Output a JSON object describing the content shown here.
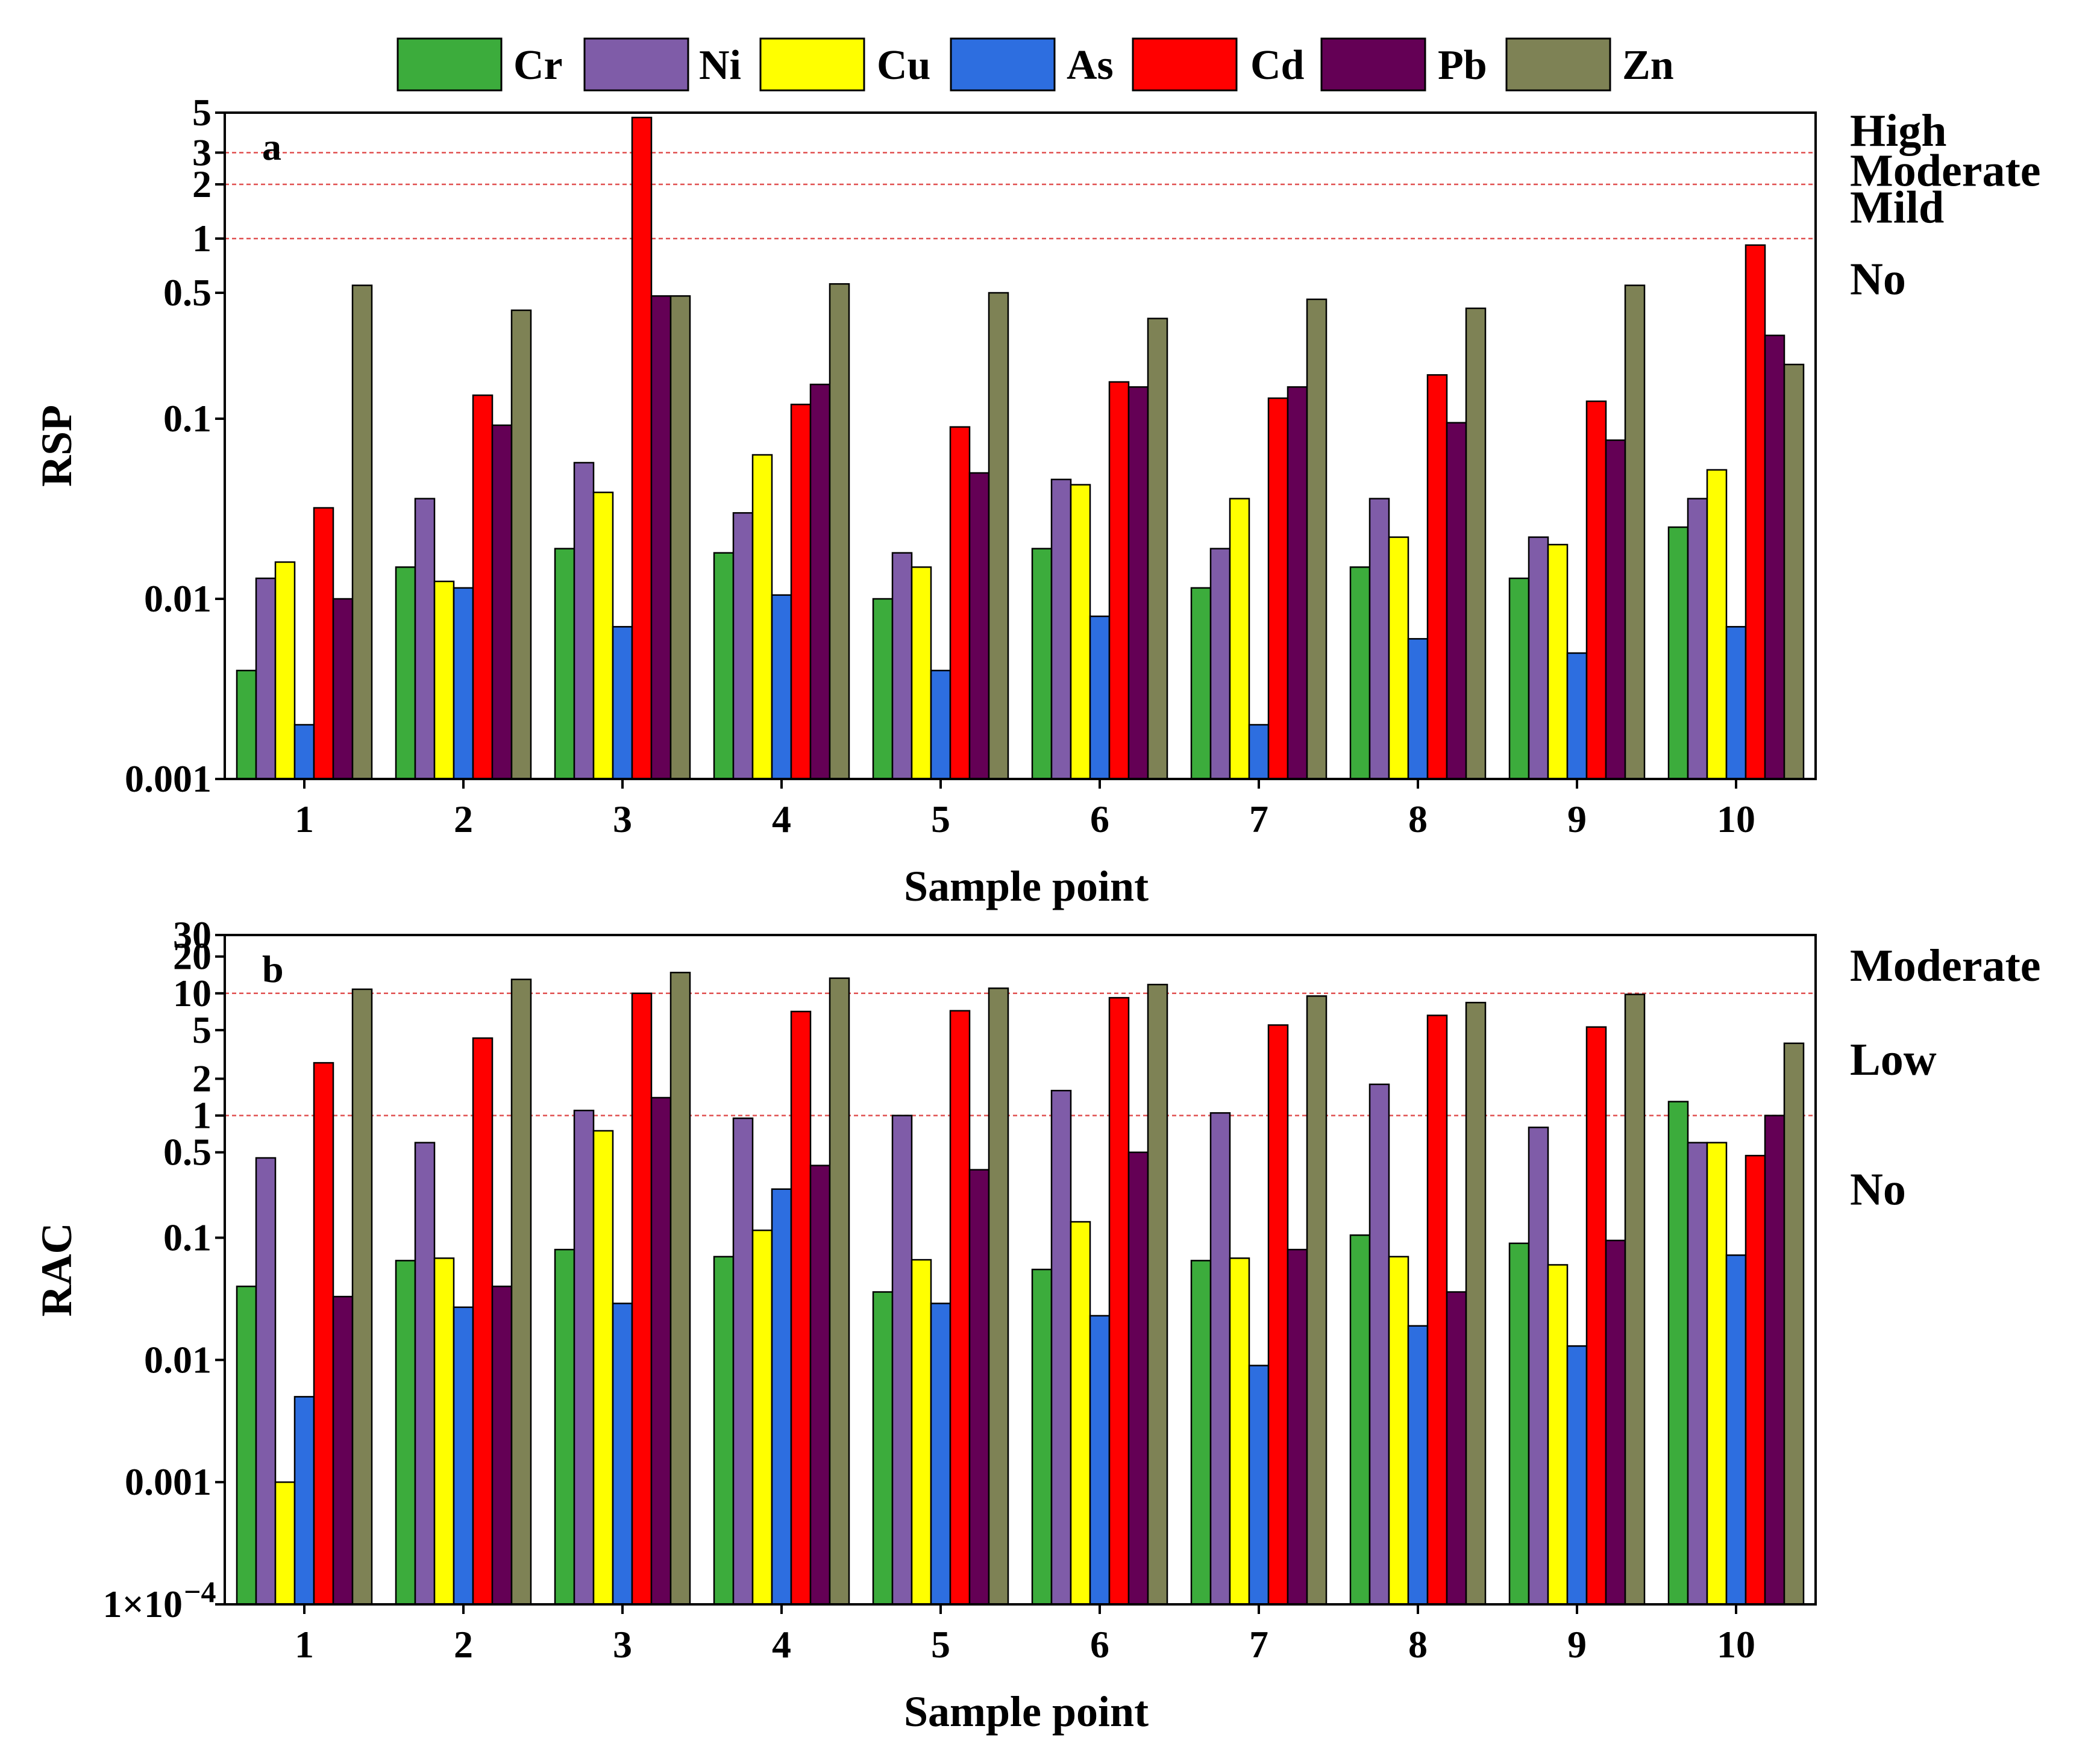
{
  "chart_data": [
    {
      "panel": "a",
      "type": "bar",
      "scale": "log",
      "title": "",
      "xlabel": "Sample point",
      "ylabel": "RSP",
      "ylim": [
        0.001,
        5
      ],
      "yticks": [
        0.001,
        0.01,
        0.1,
        0.5,
        1,
        2,
        3,
        5
      ],
      "ytick_labels": [
        "0.001",
        "0.01",
        "0.1",
        "0.5",
        "1",
        "2",
        "3",
        "5"
      ],
      "categories": [
        "1",
        "2",
        "3",
        "4",
        "5",
        "6",
        "7",
        "8",
        "9",
        "10"
      ],
      "thresholds": [
        1,
        2,
        3
      ],
      "risk_levels": [
        {
          "label": "High",
          "y": 4
        },
        {
          "label": "Moderate",
          "y": 2.4
        },
        {
          "label": "Mild",
          "y": 1.5
        },
        {
          "label": "No",
          "y": 0.6
        }
      ],
      "series": [
        {
          "name": "Cr",
          "values": [
            0.004,
            0.015,
            0.019,
            0.018,
            0.01,
            0.019,
            0.0115,
            0.015,
            0.013,
            0.025
          ]
        },
        {
          "name": "Ni",
          "values": [
            0.013,
            0.036,
            0.057,
            0.03,
            0.018,
            0.046,
            0.019,
            0.036,
            0.022,
            0.036
          ]
        },
        {
          "name": "Cu",
          "values": [
            0.016,
            0.0125,
            0.039,
            0.063,
            0.015,
            0.043,
            0.036,
            0.022,
            0.02,
            0.052
          ]
        },
        {
          "name": "As",
          "values": [
            0.002,
            0.0115,
            0.007,
            0.0105,
            0.004,
            0.008,
            0.002,
            0.006,
            0.005,
            0.007
          ]
        },
        {
          "name": "Cd",
          "values": [
            0.032,
            0.135,
            4.7,
            0.12,
            0.09,
            0.16,
            0.13,
            0.175,
            0.125,
            0.92
          ]
        },
        {
          "name": "Pb",
          "values": [
            0.01,
            0.092,
            0.48,
            0.155,
            0.05,
            0.15,
            0.15,
            0.095,
            0.076,
            0.29
          ]
        },
        {
          "name": "Zn",
          "values": [
            0.55,
            0.4,
            0.48,
            0.56,
            0.5,
            0.36,
            0.46,
            0.41,
            0.55,
            0.2
          ]
        }
      ]
    },
    {
      "panel": "b",
      "type": "bar",
      "scale": "log",
      "title": "",
      "xlabel": "Sample point",
      "ylabel": "RAC",
      "ylim": [
        0.0001,
        30
      ],
      "yticks": [
        0.0001,
        0.001,
        0.01,
        0.1,
        0.5,
        1,
        2,
        5,
        10,
        20,
        30
      ],
      "ytick_labels": [
        "1×10",
        "0.001",
        "0.01",
        "0.1",
        "0.5",
        "1",
        "2",
        "5",
        "10",
        "20",
        "30"
      ],
      "ytick_exponent": "-4",
      "categories": [
        "1",
        "2",
        "3",
        "4",
        "5",
        "6",
        "7",
        "8",
        "9",
        "10"
      ],
      "thresholds": [
        1,
        10
      ],
      "risk_levels": [
        {
          "label": "Moderate",
          "y": 17
        },
        {
          "label": "Low",
          "y": 2.9
        },
        {
          "label": "No",
          "y": 0.25
        }
      ],
      "series": [
        {
          "name": "Cr",
          "values": [
            0.04,
            0.065,
            0.08,
            0.07,
            0.036,
            0.055,
            0.065,
            0.105,
            0.09,
            1.3
          ]
        },
        {
          "name": "Ni",
          "values": [
            0.45,
            0.6,
            1.1,
            0.95,
            1.0,
            1.6,
            1.05,
            1.8,
            0.8,
            0.6
          ]
        },
        {
          "name": "Cu",
          "values": [
            0.001,
            0.068,
            0.75,
            0.115,
            0.066,
            0.135,
            0.068,
            0.07,
            0.06,
            0.6
          ]
        },
        {
          "name": "As",
          "values": [
            0.005,
            0.027,
            0.029,
            0.25,
            0.029,
            0.023,
            0.009,
            0.019,
            0.013,
            0.072
          ]
        },
        {
          "name": "Cd",
          "values": [
            2.7,
            4.3,
            10.0,
            7.1,
            7.2,
            9.2,
            5.5,
            6.6,
            5.3,
            0.47
          ]
        },
        {
          "name": "Pb",
          "values": [
            0.033,
            0.04,
            1.4,
            0.39,
            0.36,
            0.5,
            0.08,
            0.036,
            0.095,
            1.0
          ]
        },
        {
          "name": "Zn",
          "values": [
            10.8,
            13.0,
            14.8,
            13.3,
            11.0,
            11.8,
            9.5,
            8.4,
            9.8,
            3.9
          ]
        }
      ]
    }
  ],
  "legend": {
    "entries": [
      {
        "name": "Cr",
        "color": "#3cac3c"
      },
      {
        "name": "Ni",
        "color": "#7f5ca8"
      },
      {
        "name": "Cu",
        "color": "#ffff00"
      },
      {
        "name": "As",
        "color": "#2d6ee0"
      },
      {
        "name": "Cd",
        "color": "#ff0000"
      },
      {
        "name": "Pb",
        "color": "#640055"
      },
      {
        "name": "Zn",
        "color": "#7e8255"
      }
    ]
  },
  "colors": {
    "threshold_line": "#e05050",
    "axis": "#000000"
  }
}
